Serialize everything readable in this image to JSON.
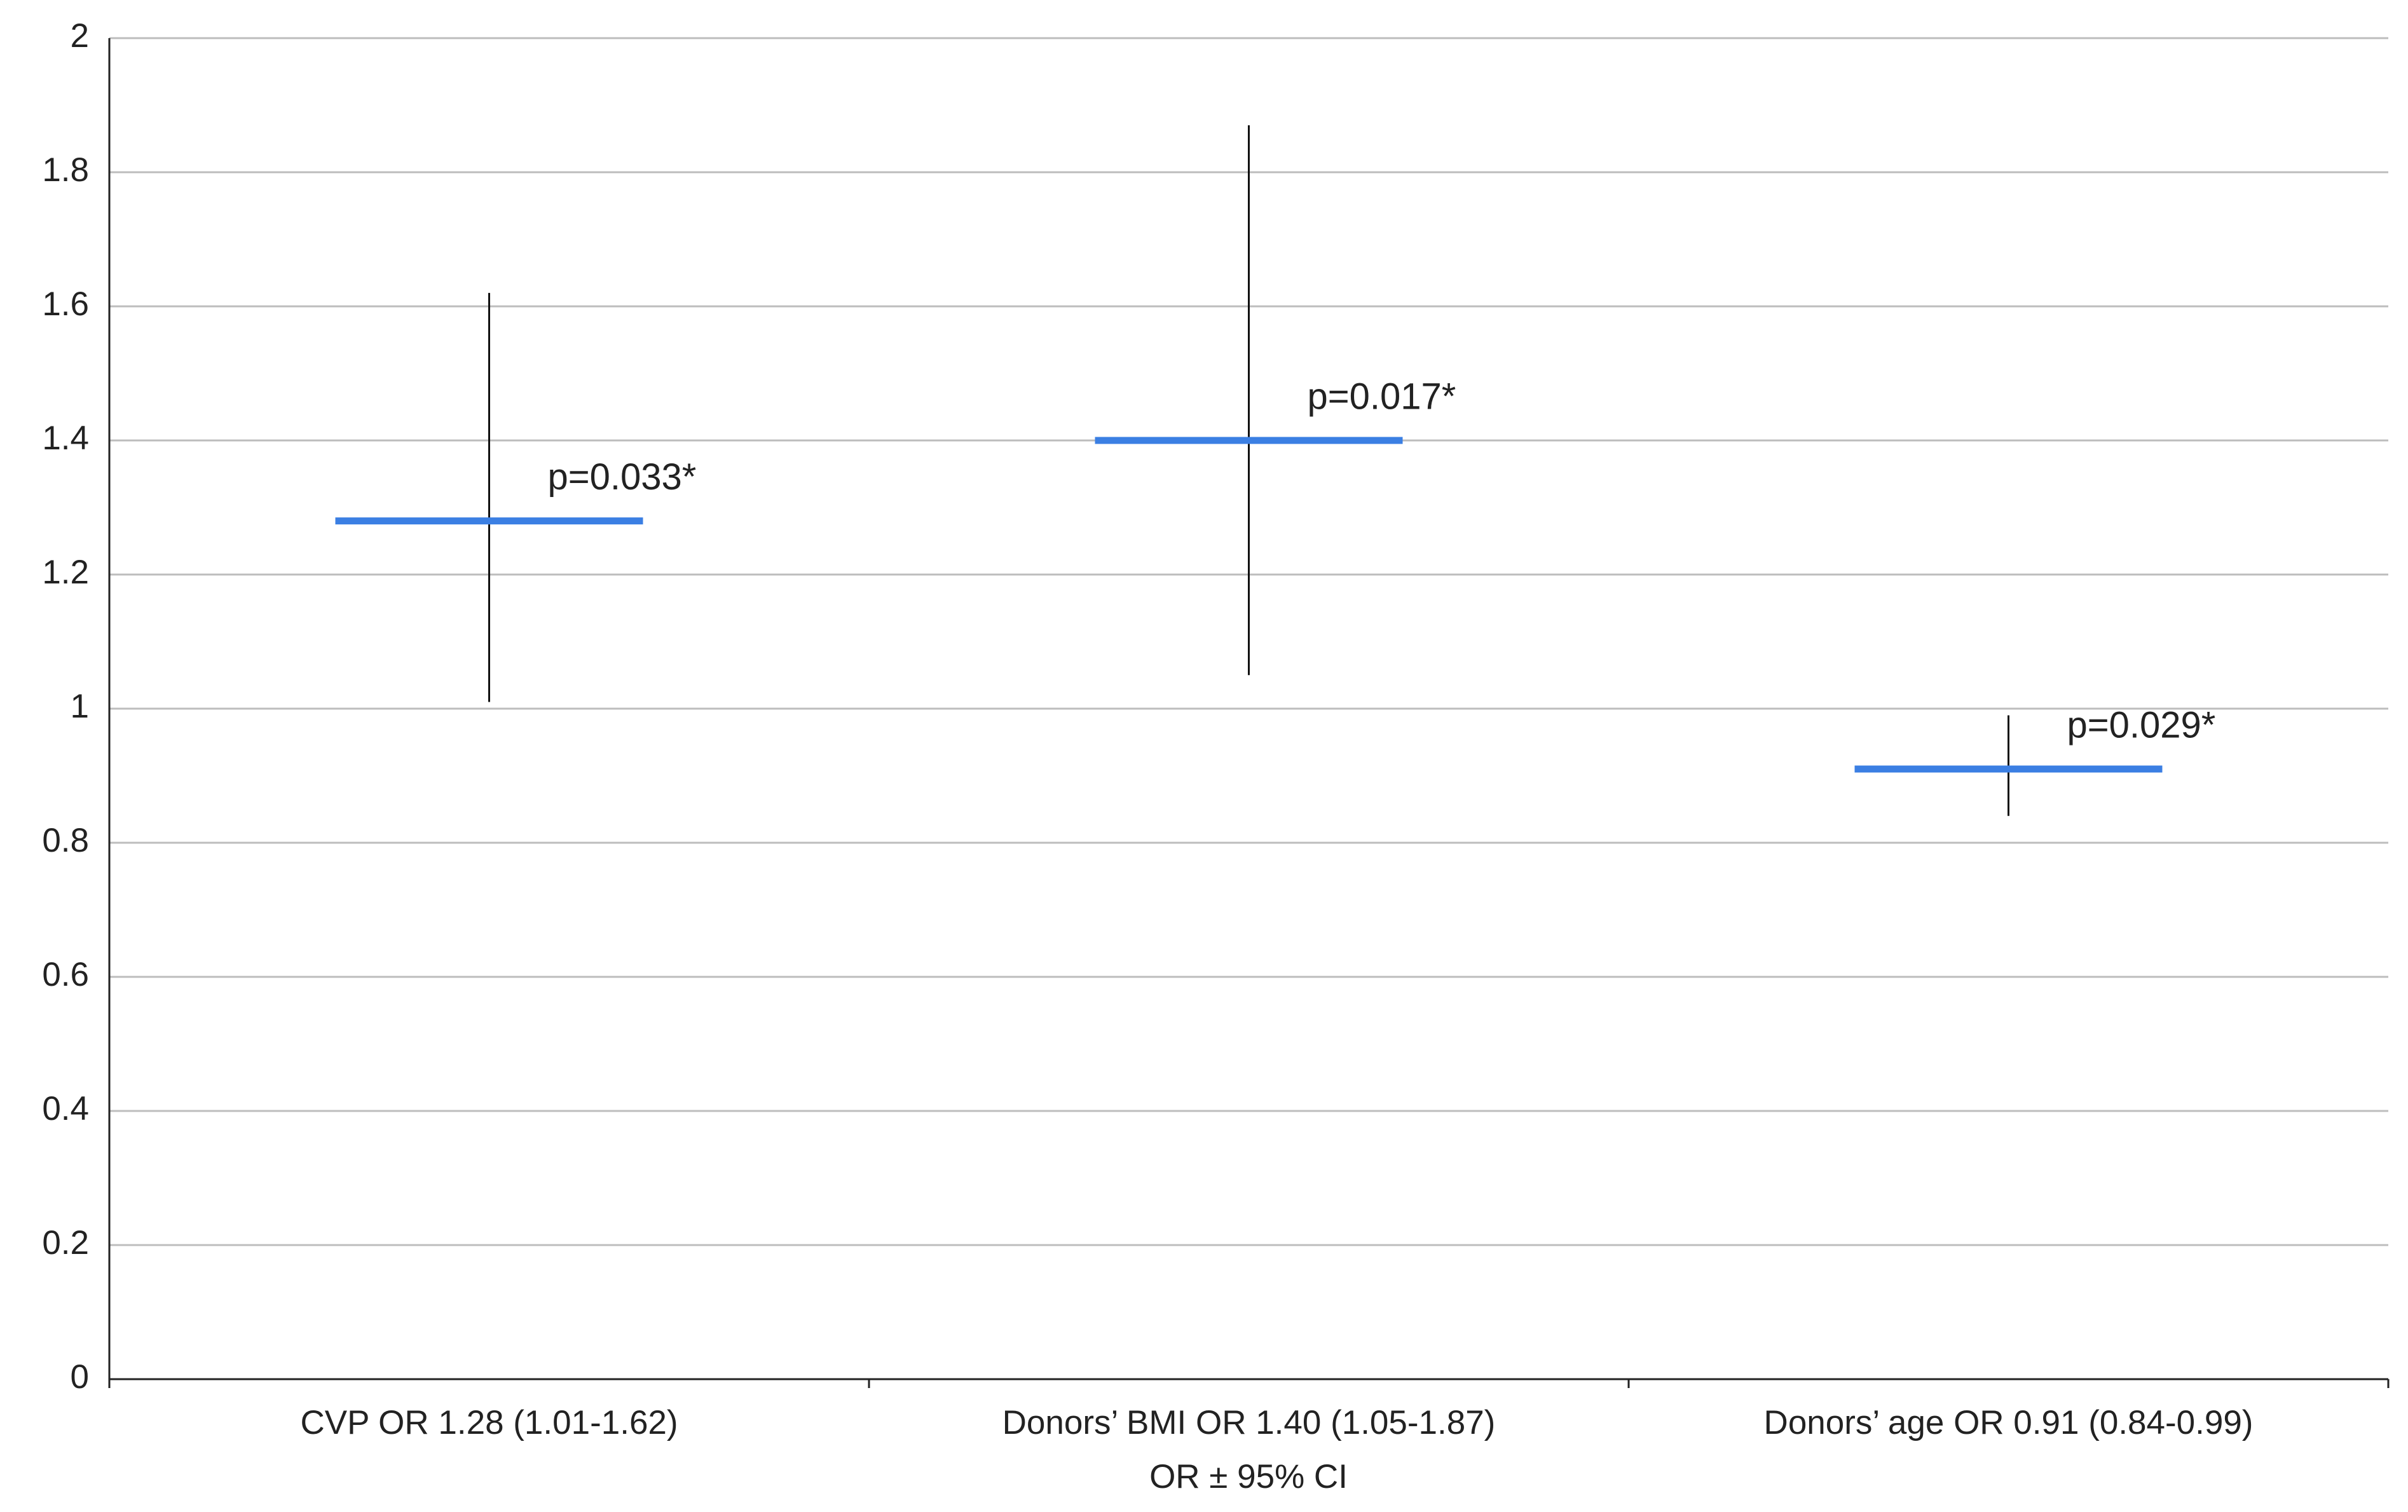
{
  "chart_data": {
    "type": "errorbar",
    "categories": [
      "CVP OR 1.28 (1.01-1.62)",
      "Donors’ BMI OR 1.40 (1.05-1.87)",
      "Donors’ age OR 0.91 (0.84-0.99)"
    ],
    "values": [
      1.28,
      1.4,
      0.91
    ],
    "ci_low": [
      1.01,
      1.05,
      0.84
    ],
    "ci_high": [
      1.62,
      1.87,
      0.99
    ],
    "annotations": [
      "p=0.033*",
      "p=0.017*",
      "p=0.029*"
    ],
    "x_label": "OR ± 95% CI",
    "color": "#3b7fe3",
    "ci_color": "#111111",
    "ylim": [
      0,
      2
    ],
    "yticks": [
      0,
      0.2,
      0.4,
      0.6,
      0.8,
      1,
      1.2,
      1.4,
      1.6,
      1.8,
      2
    ],
    "grid": true
  }
}
